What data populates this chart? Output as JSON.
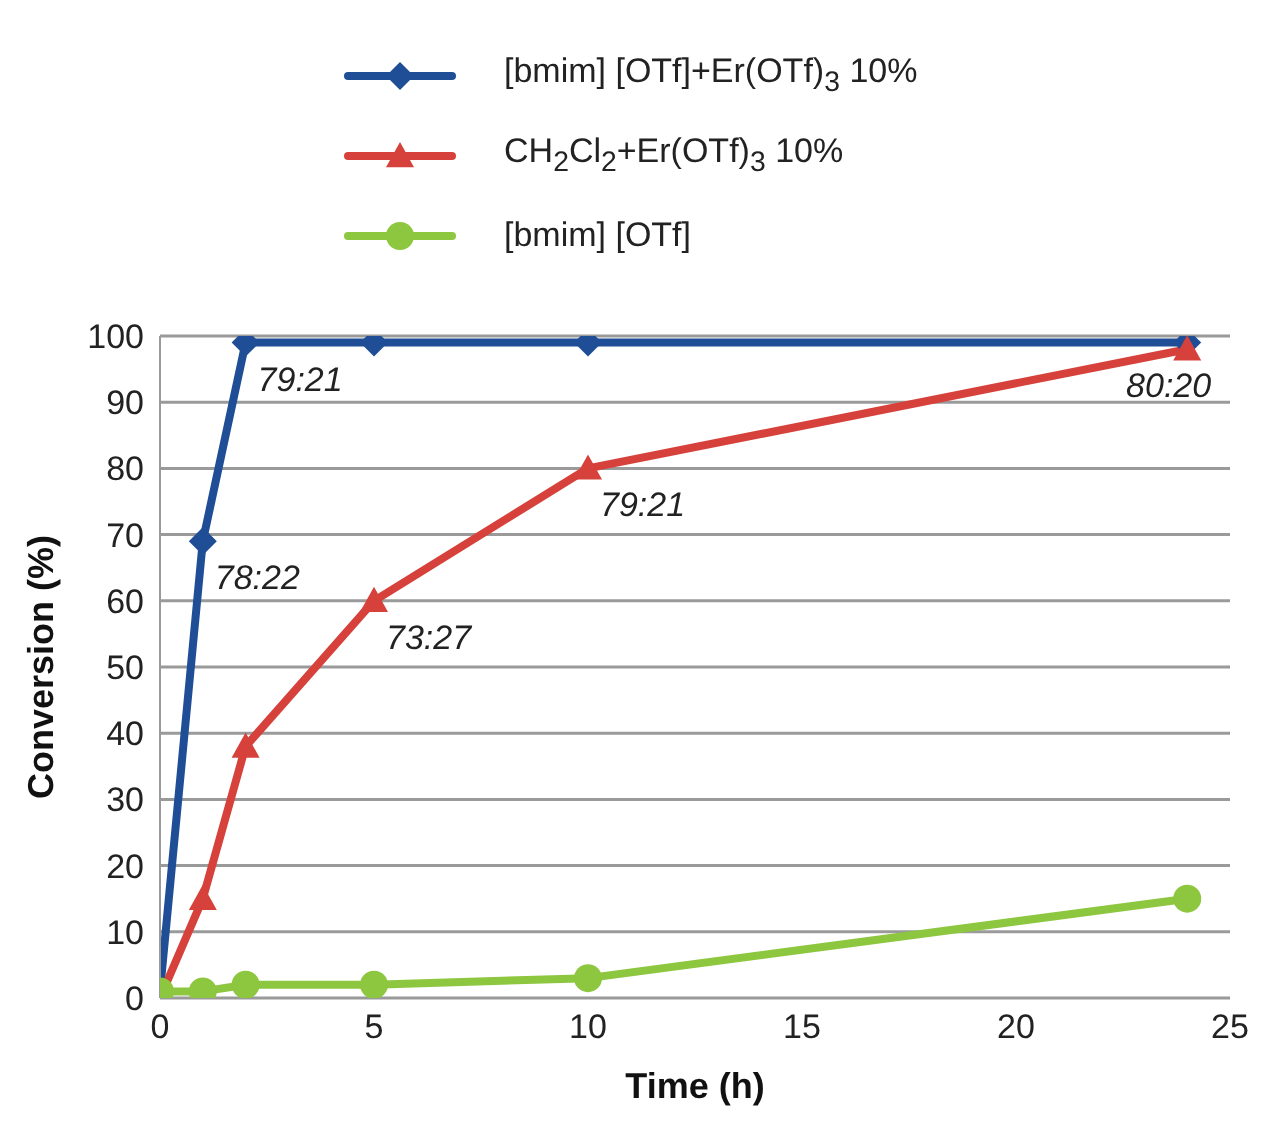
{
  "chart_data": {
    "type": "line",
    "xlabel": "Time (h)",
    "ylabel": "Conversion (%)",
    "xlim": [
      0,
      25
    ],
    "xticks": [
      0,
      5,
      10,
      15,
      20,
      25
    ],
    "ylim": [
      0,
      100
    ],
    "yticks": [
      0,
      10,
      20,
      30,
      40,
      50,
      60,
      70,
      80,
      90,
      100
    ],
    "grid": "y",
    "legend": "top left",
    "line_style": "solid",
    "x": [
      0,
      1,
      2,
      5,
      10,
      24
    ],
    "series": [
      {
        "name": "[bmim] [OTf]+Er(OTf)$_{3}$ 10%",
        "color": "#1f4e96",
        "marker": "diamond",
        "values": [
          1,
          69,
          99,
          99,
          99,
          99
        ]
      },
      {
        "name": "CH$_{2}$Cl$_{2}$+Er(OTf)$_{3}$ 10%",
        "color": "#d6423b",
        "marker": "triangle",
        "values": [
          0,
          15,
          38,
          60,
          80,
          98
        ]
      },
      {
        "name": "[bmim] [OTf]",
        "color": "#8dc63f",
        "marker": "circle",
        "values": [
          1,
          1,
          2,
          2,
          3,
          15
        ]
      }
    ],
    "annotations": [
      {
        "text": "78:22",
        "x": 1,
        "y": 69
      },
      {
        "text": "79:21",
        "x": 2,
        "y": 99
      },
      {
        "text": "73:27",
        "x": 5,
        "y": 60
      },
      {
        "text": "79:21",
        "x": 10,
        "y": 80
      },
      {
        "text": "80:20",
        "x": 24,
        "y": 98
      }
    ]
  }
}
